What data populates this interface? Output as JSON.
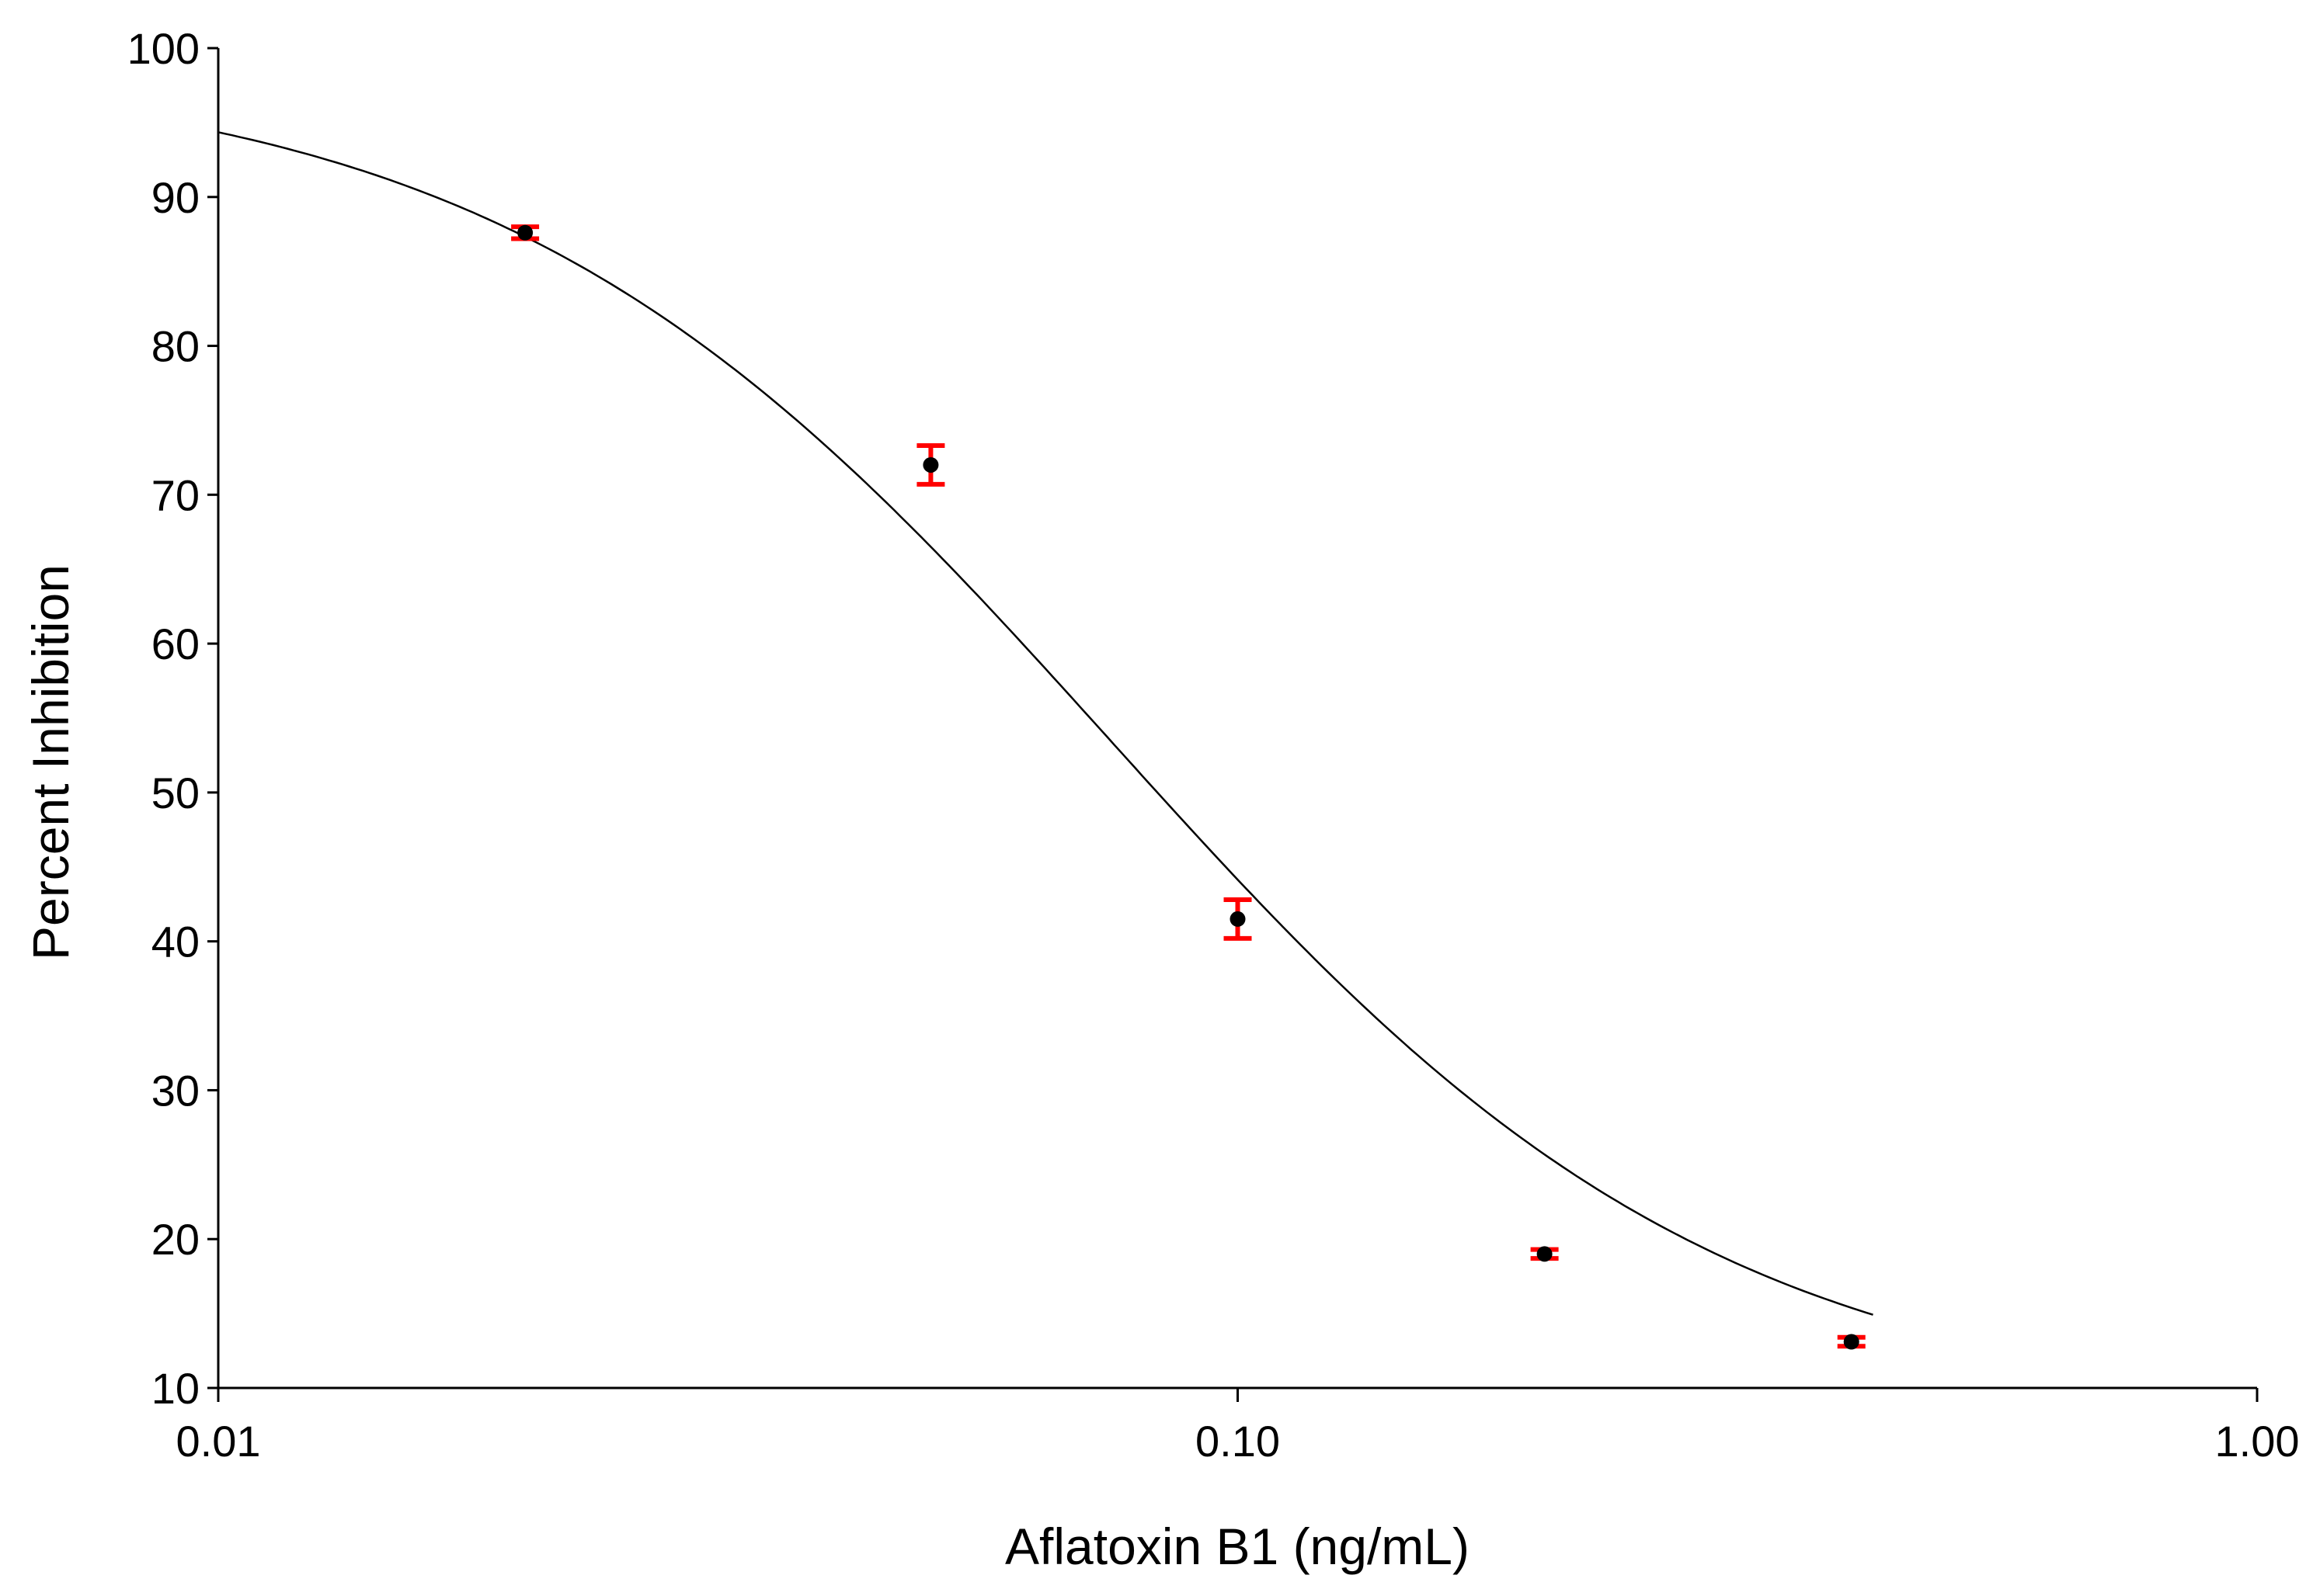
{
  "chart_data": {
    "type": "scatter",
    "xlabel": "Aflatoxin B1 (ng/mL)",
    "ylabel": "Percent Inhibition",
    "x_scale": "log",
    "xlim": [
      0.01,
      1.0
    ],
    "ylim": [
      10,
      100
    ],
    "x_ticks": [
      {
        "value": 0.01,
        "label": "0.01"
      },
      {
        "value": 0.1,
        "label": "0.10"
      },
      {
        "value": 1.0,
        "label": "1.00"
      }
    ],
    "y_ticks": [
      {
        "value": 10,
        "label": "10"
      },
      {
        "value": 20,
        "label": "20"
      },
      {
        "value": 30,
        "label": "30"
      },
      {
        "value": 40,
        "label": "40"
      },
      {
        "value": 50,
        "label": "50"
      },
      {
        "value": 60,
        "label": "60"
      },
      {
        "value": 70,
        "label": "70"
      },
      {
        "value": 80,
        "label": "80"
      },
      {
        "value": 90,
        "label": "90"
      },
      {
        "value": 100,
        "label": "100"
      }
    ],
    "grid": false,
    "points": [
      {
        "x": 0.02,
        "y": 87.6,
        "err": 0.4
      },
      {
        "x": 0.05,
        "y": 72.0,
        "err": 1.3
      },
      {
        "x": 0.1,
        "y": 41.5,
        "err": 1.3
      },
      {
        "x": 0.2,
        "y": 19.0,
        "err": 0.3
      },
      {
        "x": 0.4,
        "y": 13.1,
        "err": 0.3
      }
    ],
    "fit_curve": {
      "type": "four-parameter logistic",
      "top": 99,
      "bottom": 8,
      "ic50": 0.075,
      "hill": 1.45,
      "x_range": [
        0.01,
        0.42
      ]
    },
    "colors": {
      "points": "#000000",
      "error_bars": "#ff0000",
      "curve": "#000000",
      "axes": "#000000"
    }
  }
}
